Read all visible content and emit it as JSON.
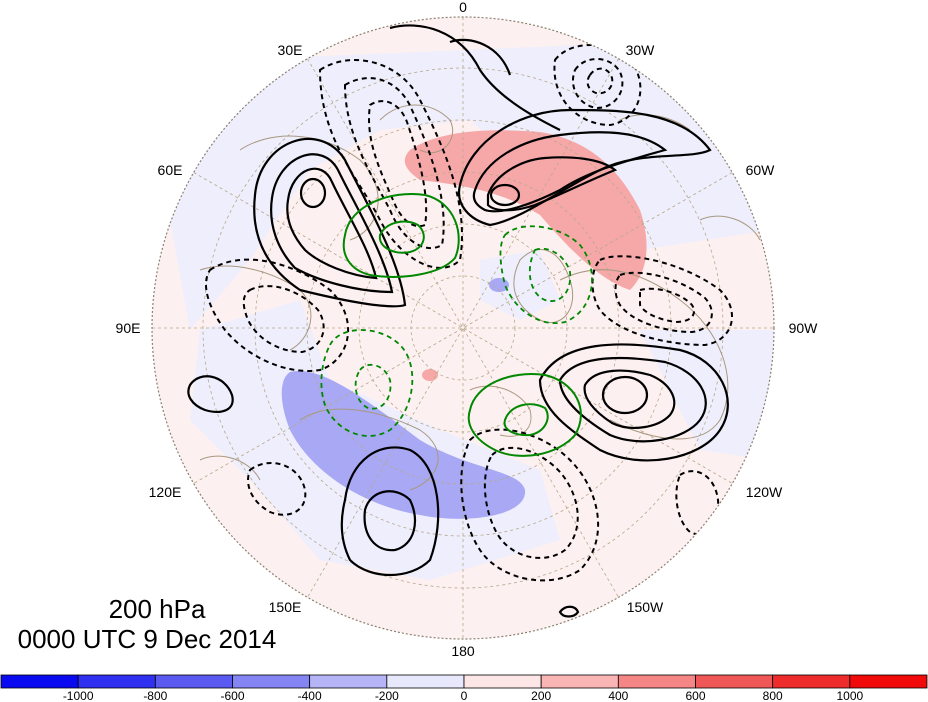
{
  "map": {
    "level_label": "200 hPa",
    "time_label": "0000 UTC 9 Dec 2014",
    "longitude_labels": [
      "0",
      "30W",
      "60W",
      "90W",
      "120W",
      "150W",
      "180",
      "150E",
      "120E",
      "90E",
      "60E",
      "30E"
    ]
  },
  "colorbar": {
    "tick_labels": [
      "-1000",
      "-800",
      "-600",
      "-400",
      "-200",
      "0",
      "200",
      "400",
      "600",
      "800",
      "1000"
    ],
    "colors": [
      "#0a0af0",
      "#3030f0",
      "#5a5af0",
      "#8484f2",
      "#b4b4f6",
      "#e8e8fc",
      "#fde6e6",
      "#f9b4b4",
      "#f48686",
      "#f05858",
      "#ee2c2c",
      "#f00a0a"
    ]
  },
  "colors": {
    "contour_positive": "#000000",
    "contour_negative": "#000000",
    "contour_green": "#008800",
    "graticule": "#b8a88a",
    "coastline": "#a89880"
  }
}
